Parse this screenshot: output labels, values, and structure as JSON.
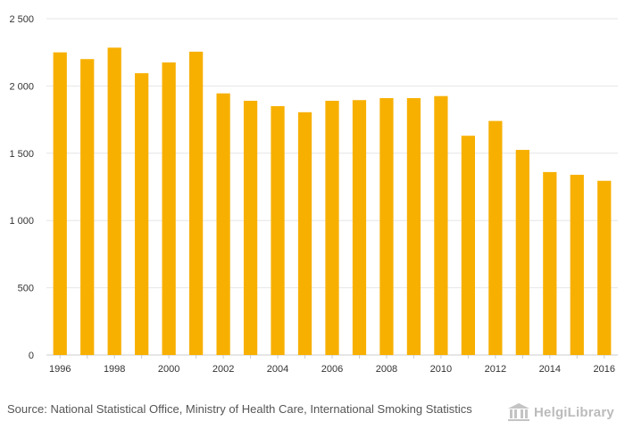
{
  "chart_data": {
    "type": "bar",
    "categories": [
      "1996",
      "1997",
      "1998",
      "1999",
      "2000",
      "2001",
      "2002",
      "2003",
      "2004",
      "2005",
      "2006",
      "2007",
      "2008",
      "2009",
      "2010",
      "2011",
      "2012",
      "2013",
      "2014",
      "2015",
      "2016"
    ],
    "values": [
      2250,
      2200,
      2285,
      2095,
      2175,
      2255,
      1945,
      1890,
      1850,
      1805,
      1890,
      1895,
      1910,
      1910,
      1925,
      1630,
      1740,
      1525,
      1360,
      1340,
      1295
    ],
    "x_tick_labels": [
      "1996",
      "1998",
      "2000",
      "2002",
      "2004",
      "2006",
      "2008",
      "2010",
      "2012",
      "2014",
      "2016"
    ],
    "y_tick_labels": [
      "0",
      "500",
      "1 000",
      "1 500",
      "2 000",
      "2 500"
    ],
    "y_ticks": [
      0,
      500,
      1000,
      1500,
      2000,
      2500
    ],
    "ylim": [
      0,
      2500
    ],
    "title": "",
    "xlabel": "",
    "ylabel": "",
    "grid": true,
    "bar_color": "#F7B000",
    "grid_color": "#e6e6e6"
  },
  "footer": {
    "source_label": "Source:",
    "source_text": "National Statistical Office, Ministry of Health Care, International Smoking Statistics",
    "logo_text": "HelgiLibrary"
  }
}
